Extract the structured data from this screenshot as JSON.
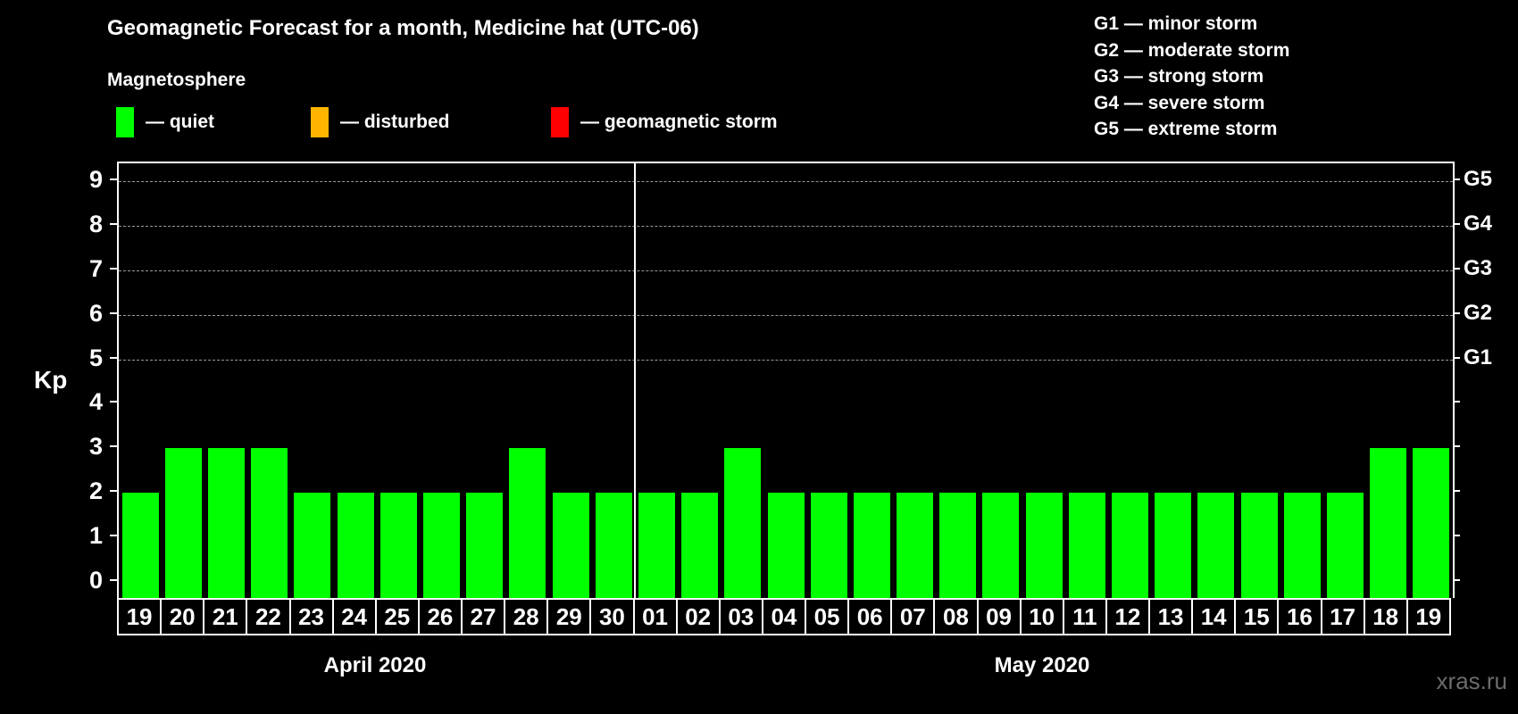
{
  "title": "Geomagnetic Forecast for a month, Medicine hat (UTC-06)",
  "subtitle": "Magnetosphere",
  "legend": {
    "items": [
      {
        "name": "quiet",
        "label": "— quiet",
        "color": "#00ff00"
      },
      {
        "name": "disturbed",
        "label": "— disturbed",
        "color": "#ffb400"
      },
      {
        "name": "geomagnetic-storm",
        "label": "— geomagnetic storm",
        "color": "#ff0000"
      }
    ]
  },
  "storm_scale_legend": {
    "lines": [
      "G1 — minor storm",
      "G2 — moderate storm",
      "G3 — strong storm",
      "G4 — severe storm",
      "G5 — extreme storm"
    ]
  },
  "watermark": "xras.ru",
  "chart_data": {
    "type": "bar",
    "ylabel": "Kp",
    "ylim": [
      0,
      9
    ],
    "yticks": [
      0,
      1,
      2,
      3,
      4,
      5,
      6,
      7,
      8,
      9
    ],
    "gridlines_at": [
      5,
      6,
      7,
      8,
      9
    ],
    "grid_style": "dashed",
    "bar_color": "#00ff00",
    "right_axis_labels": [
      {
        "label": "G5",
        "kp": 9
      },
      {
        "label": "G4",
        "kp": 8
      },
      {
        "label": "G3",
        "kp": 7
      },
      {
        "label": "G2",
        "kp": 6
      },
      {
        "label": "G1",
        "kp": 5
      }
    ],
    "groups": [
      {
        "label": "April 2020",
        "days": [
          "19",
          "20",
          "21",
          "22",
          "23",
          "24",
          "25",
          "26",
          "27",
          "28",
          "29",
          "30"
        ],
        "values": [
          2,
          3,
          3,
          3,
          2,
          2,
          2,
          2,
          2,
          3,
          2,
          2
        ]
      },
      {
        "label": "May 2020",
        "days": [
          "01",
          "02",
          "03",
          "04",
          "05",
          "06",
          "07",
          "08",
          "09",
          "10",
          "11",
          "12",
          "13",
          "14",
          "15",
          "16",
          "17",
          "18",
          "19"
        ],
        "values": [
          2,
          2,
          3,
          2,
          2,
          2,
          2,
          2,
          2,
          2,
          2,
          2,
          2,
          2,
          2,
          2,
          2,
          3,
          3
        ]
      }
    ]
  }
}
